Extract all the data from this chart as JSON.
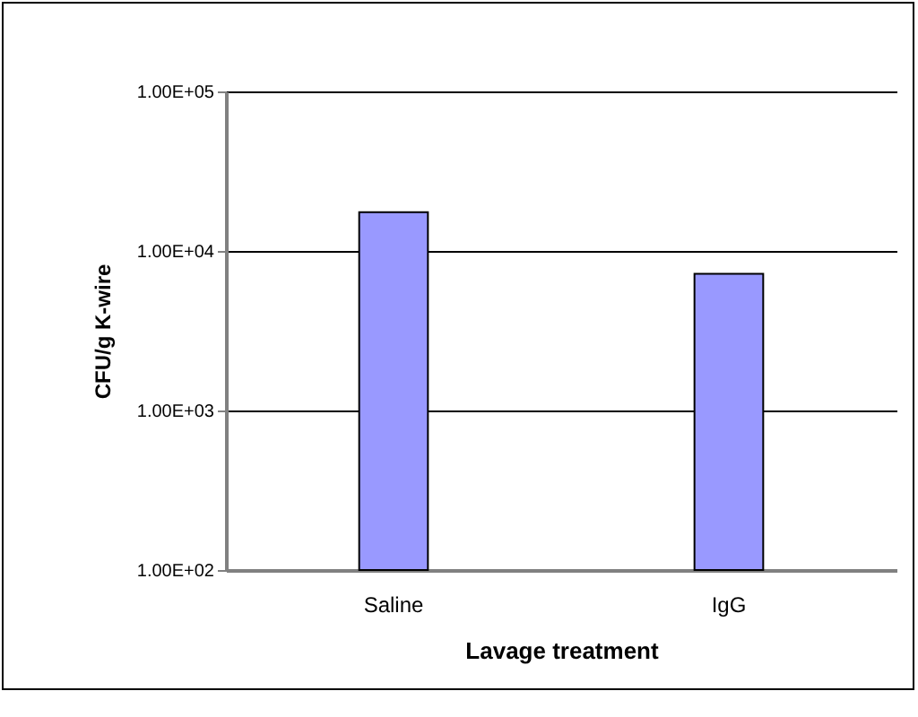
{
  "chart_data": {
    "type": "bar",
    "xlabel": "Lavage treatment",
    "ylabel": "CFU/g K-wire",
    "categories": [
      "Saline",
      "IgG"
    ],
    "series": [
      {
        "color": "#9999ff",
        "values": [
          17500,
          7200
        ]
      }
    ],
    "log": "y",
    "ylim": [
      100,
      100000
    ],
    "yticks": [
      {
        "value": 100,
        "label": "1.00E+02"
      },
      {
        "value": 1000,
        "label": "1.00E+03"
      },
      {
        "value": 10000,
        "label": "1.00E+04"
      },
      {
        "value": 100000,
        "label": "1.00E+05"
      }
    ],
    "grid": "y"
  }
}
